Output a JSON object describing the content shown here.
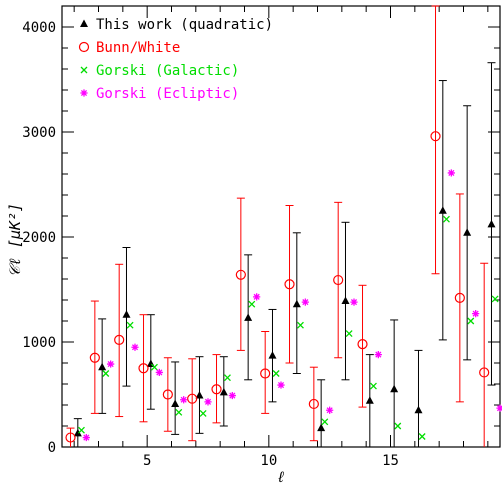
{
  "chart_data": {
    "type": "scatter",
    "xlabel": "ℓ",
    "ylabel": "𝒞ℓ [μK²]",
    "xlim": [
      1.5,
      19.5
    ],
    "ylim": [
      0,
      4200
    ],
    "xticks": [
      5,
      10,
      15
    ],
    "yticks": [
      0,
      1000,
      2000,
      3000,
      4000
    ],
    "legend_position": "top-left",
    "series": [
      {
        "name": "This work (quadratic)",
        "marker": "triangle",
        "color": "#000000",
        "points": [
          {
            "x": 2.15,
            "y": 130,
            "lo": 0,
            "hi": 270
          },
          {
            "x": 3.15,
            "y": 760,
            "lo": 320,
            "hi": 1220
          },
          {
            "x": 4.15,
            "y": 1260,
            "lo": 580,
            "hi": 1900
          },
          {
            "x": 5.15,
            "y": 790,
            "lo": 360,
            "hi": 1260
          },
          {
            "x": 6.15,
            "y": 410,
            "lo": 120,
            "hi": 810
          },
          {
            "x": 7.15,
            "y": 490,
            "lo": 130,
            "hi": 860
          },
          {
            "x": 8.15,
            "y": 520,
            "lo": 200,
            "hi": 860
          },
          {
            "x": 9.15,
            "y": 1230,
            "lo": 640,
            "hi": 1830
          },
          {
            "x": 10.15,
            "y": 870,
            "lo": 430,
            "hi": 1310
          },
          {
            "x": 11.15,
            "y": 1360,
            "lo": 700,
            "hi": 2040
          },
          {
            "x": 12.15,
            "y": 180,
            "lo": 0,
            "hi": 640
          },
          {
            "x": 13.15,
            "y": 1390,
            "lo": 640,
            "hi": 2140
          },
          {
            "x": 14.15,
            "y": 440,
            "lo": 0,
            "hi": 880
          },
          {
            "x": 15.15,
            "y": 550,
            "lo": 0,
            "hi": 1210
          },
          {
            "x": 16.15,
            "y": 350,
            "lo": 0,
            "hi": 920
          },
          {
            "x": 17.15,
            "y": 2250,
            "lo": 1020,
            "hi": 3490
          },
          {
            "x": 18.15,
            "y": 2040,
            "lo": 830,
            "hi": 3250
          },
          {
            "x": 19.15,
            "y": 2120,
            "lo": 590,
            "hi": 3660
          }
        ]
      },
      {
        "name": "Bunn/White",
        "marker": "circle",
        "color": "#ff0000",
        "points": [
          {
            "x": 1.85,
            "y": 90,
            "lo": 0,
            "hi": 180
          },
          {
            "x": 2.85,
            "y": 850,
            "lo": 320,
            "hi": 1390
          },
          {
            "x": 3.85,
            "y": 1020,
            "lo": 290,
            "hi": 1740
          },
          {
            "x": 4.85,
            "y": 750,
            "lo": 240,
            "hi": 1260
          },
          {
            "x": 5.85,
            "y": 500,
            "lo": 150,
            "hi": 850
          },
          {
            "x": 6.85,
            "y": 460,
            "lo": 60,
            "hi": 840
          },
          {
            "x": 7.85,
            "y": 550,
            "lo": 230,
            "hi": 880
          },
          {
            "x": 8.85,
            "y": 1640,
            "lo": 920,
            "hi": 2370
          },
          {
            "x": 9.85,
            "y": 700,
            "lo": 320,
            "hi": 1100
          },
          {
            "x": 10.85,
            "y": 1550,
            "lo": 800,
            "hi": 2300
          },
          {
            "x": 11.85,
            "y": 410,
            "lo": 60,
            "hi": 760
          },
          {
            "x": 12.85,
            "y": 1590,
            "lo": 850,
            "hi": 2330
          },
          {
            "x": 13.85,
            "y": 980,
            "lo": 380,
            "hi": 1540
          },
          {
            "x": 16.85,
            "y": 2960,
            "lo": 1650,
            "hi": 4200
          },
          {
            "x": 17.85,
            "y": 1420,
            "lo": 430,
            "hi": 2410
          },
          {
            "x": 18.85,
            "y": 710,
            "lo": 0,
            "hi": 1750
          }
        ]
      },
      {
        "name": "Gorski (Galactic)",
        "marker": "cross",
        "color": "#00dd00",
        "points": [
          {
            "x": 2.3,
            "y": 160
          },
          {
            "x": 3.3,
            "y": 700
          },
          {
            "x": 4.3,
            "y": 1160
          },
          {
            "x": 5.3,
            "y": 760
          },
          {
            "x": 6.3,
            "y": 330
          },
          {
            "x": 7.3,
            "y": 320
          },
          {
            "x": 8.3,
            "y": 660
          },
          {
            "x": 9.3,
            "y": 1360
          },
          {
            "x": 10.3,
            "y": 700
          },
          {
            "x": 11.3,
            "y": 1160
          },
          {
            "x": 12.3,
            "y": 240
          },
          {
            "x": 13.3,
            "y": 1080
          },
          {
            "x": 14.3,
            "y": 580
          },
          {
            "x": 15.3,
            "y": 200
          },
          {
            "x": 16.3,
            "y": 100
          },
          {
            "x": 17.3,
            "y": 2170
          },
          {
            "x": 18.3,
            "y": 1200
          },
          {
            "x": 19.3,
            "y": 1410
          }
        ]
      },
      {
        "name": "Gorski (Ecliptic)",
        "marker": "asterisk",
        "color": "#ff00ff",
        "points": [
          {
            "x": 2.5,
            "y": 90
          },
          {
            "x": 3.5,
            "y": 790
          },
          {
            "x": 4.5,
            "y": 950
          },
          {
            "x": 5.5,
            "y": 710
          },
          {
            "x": 6.5,
            "y": 450
          },
          {
            "x": 7.5,
            "y": 430
          },
          {
            "x": 8.5,
            "y": 490
          },
          {
            "x": 9.5,
            "y": 1430
          },
          {
            "x": 10.5,
            "y": 590
          },
          {
            "x": 11.5,
            "y": 1380
          },
          {
            "x": 12.5,
            "y": 350
          },
          {
            "x": 13.5,
            "y": 1380
          },
          {
            "x": 14.5,
            "y": 880
          },
          {
            "x": 17.5,
            "y": 2610
          },
          {
            "x": 18.5,
            "y": 1270
          },
          {
            "x": 19.5,
            "y": 370
          }
        ]
      }
    ]
  }
}
